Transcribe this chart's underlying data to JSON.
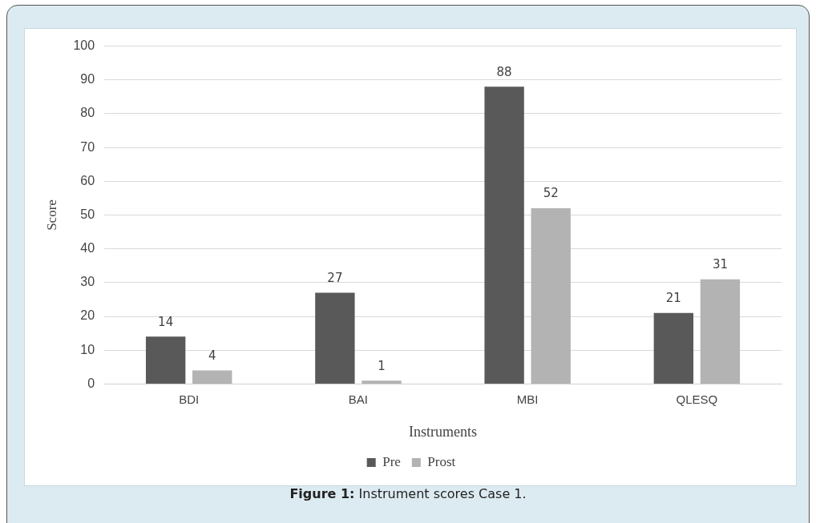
{
  "chart_data": {
    "type": "bar",
    "xlabel": "Instruments",
    "ylabel": "Score",
    "categories": [
      "BDI",
      "BAI",
      "MBI",
      "QLESQ"
    ],
    "series": [
      {
        "name": "Pre",
        "color": "#595959",
        "values": [
          14,
          27,
          88,
          21
        ]
      },
      {
        "name": "Prost",
        "color": "#b3b3b3",
        "values": [
          4,
          1,
          52,
          31
        ]
      }
    ],
    "ylim": [
      0,
      100
    ],
    "yticks": [
      0,
      10,
      20,
      30,
      40,
      50,
      60,
      70,
      80,
      90,
      100
    ],
    "grid": "y",
    "legend": "bottom",
    "data_labels": true,
    "annotations": [
      "Figure 1: Instrument scores Case 1."
    ]
  }
}
